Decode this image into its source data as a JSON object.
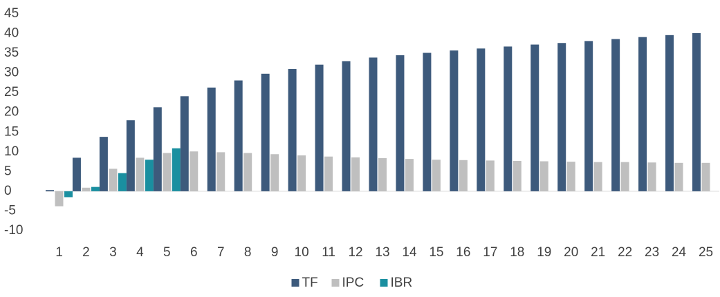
{
  "chart_data": {
    "type": "bar",
    "categories": [
      "1",
      "2",
      "3",
      "4",
      "5",
      "6",
      "7",
      "8",
      "9",
      "10",
      "11",
      "12",
      "13",
      "14",
      "15",
      "16",
      "17",
      "18",
      "19",
      "20",
      "21",
      "22",
      "23",
      "24",
      "25"
    ],
    "series": [
      {
        "name": "TF",
        "color": "#3d5a7c",
        "values": [
          0.3,
          8.5,
          13.8,
          18,
          21.3,
          24.1,
          26.3,
          28.1,
          29.8,
          31,
          32.1,
          33,
          33.9,
          34.5,
          35.1,
          35.7,
          36.2,
          36.7,
          37.2,
          37.6,
          38.1,
          38.6,
          39.1,
          39.6,
          40.1
        ]
      },
      {
        "name": "IPC",
        "color": "#bfbfbf",
        "values": [
          -3.8,
          0.9,
          5.7,
          8.5,
          9.7,
          10.1,
          9.9,
          9.7,
          9.4,
          9.1,
          8.8,
          8.6,
          8.4,
          8.2,
          8.0,
          7.9,
          7.8,
          7.7,
          7.6,
          7.5,
          7.4,
          7.4,
          7.3,
          7.2,
          7.2
        ]
      },
      {
        "name": "IBR",
        "color": "#1a8fa0",
        "values": [
          -1.5,
          1.1,
          4.6,
          8,
          10.9,
          null,
          null,
          null,
          null,
          null,
          null,
          null,
          null,
          null,
          null,
          null,
          null,
          null,
          null,
          null,
          null,
          null,
          null,
          null,
          null
        ]
      }
    ],
    "ylim": [
      -10,
      45
    ],
    "yticks": [
      -10,
      -5,
      0,
      5,
      10,
      15,
      20,
      25,
      30,
      35,
      40,
      45
    ],
    "grid": false,
    "legend": "bottom"
  }
}
